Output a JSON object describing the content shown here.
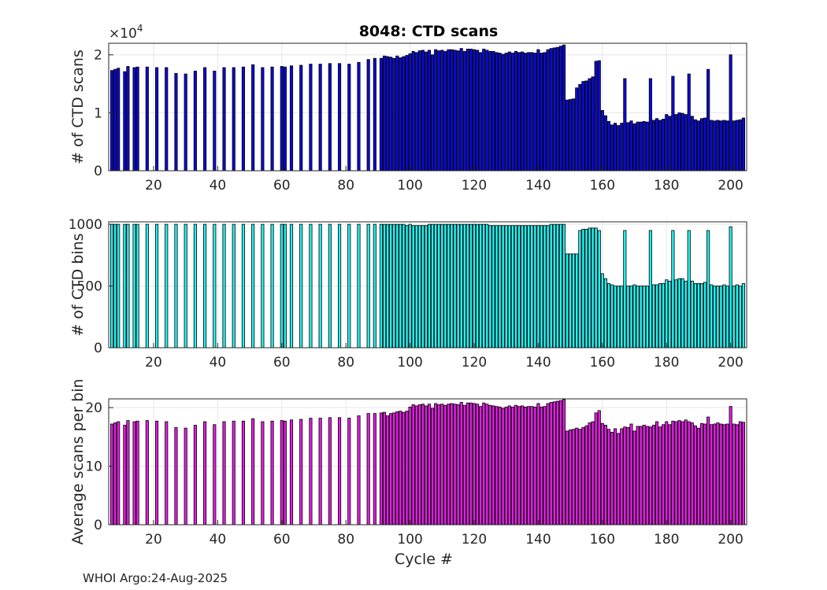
{
  "figure_title": "8048: CTD scans",
  "footer": "WHOI Argo:24-Aug-2025",
  "chart_data": [
    {
      "type": "bar",
      "title": "8048: CTD scans",
      "xlabel": "",
      "ylabel": "# of CTD scans",
      "exponent_label": "×10",
      "exponent_power": "4",
      "xlim": [
        6,
        205
      ],
      "ylim": [
        0,
        22000
      ],
      "xticks": [
        20,
        40,
        60,
        80,
        100,
        120,
        140,
        160,
        180,
        200
      ],
      "yticks": [
        0,
        10000,
        20000
      ],
      "ytick_labels": [
        "0",
        "1",
        "2"
      ],
      "color": "#0b0bd8",
      "edgecolor": "#000000",
      "x": [
        7,
        8,
        9,
        11,
        12,
        14,
        15,
        18,
        21,
        24,
        27,
        30,
        33,
        36,
        39,
        42,
        45,
        48,
        51,
        54,
        57,
        60,
        61,
        63,
        66,
        69,
        72,
        75,
        78,
        81,
        84,
        87,
        89,
        91,
        92,
        93,
        94,
        95,
        96,
        97,
        98,
        99,
        100,
        101,
        102,
        103,
        104,
        105,
        106,
        107,
        108,
        109,
        110,
        111,
        112,
        113,
        114,
        115,
        116,
        117,
        118,
        119,
        120,
        121,
        122,
        123,
        124,
        125,
        126,
        127,
        128,
        129,
        130,
        131,
        132,
        133,
        134,
        135,
        136,
        137,
        138,
        139,
        140,
        141,
        142,
        143,
        144,
        145,
        146,
        147,
        148,
        149,
        150,
        151,
        152,
        153,
        154,
        155,
        156,
        157,
        158,
        159,
        160,
        161,
        162,
        163,
        164,
        165,
        166,
        167,
        168,
        169,
        170,
        171,
        172,
        173,
        174,
        175,
        176,
        177,
        178,
        179,
        180,
        181,
        182,
        183,
        184,
        185,
        186,
        187,
        188,
        189,
        190,
        191,
        192,
        193,
        194,
        195,
        196,
        197,
        198,
        199,
        200,
        201,
        202,
        203,
        204
      ],
      "values": [
        17300,
        17500,
        17700,
        17100,
        18000,
        17800,
        17900,
        17900,
        17800,
        17800,
        16800,
        16700,
        17200,
        17800,
        17200,
        17800,
        17800,
        17900,
        18300,
        17800,
        17900,
        18000,
        17900,
        18100,
        18200,
        18400,
        18400,
        18500,
        18500,
        18400,
        18700,
        19200,
        19400,
        19400,
        19800,
        19700,
        19600,
        19400,
        19800,
        19500,
        19700,
        19900,
        20200,
        20600,
        20400,
        20700,
        20800,
        20500,
        20800,
        20000,
        20900,
        20700,
        20800,
        20600,
        20900,
        20900,
        20800,
        20700,
        21100,
        20600,
        21000,
        21000,
        20900,
        20800,
        20400,
        21000,
        20800,
        20600,
        20600,
        20400,
        20300,
        20100,
        20300,
        20500,
        20300,
        20600,
        20400,
        20500,
        20300,
        20400,
        20400,
        20300,
        20900,
        20300,
        20400,
        20900,
        21100,
        21200,
        21300,
        21500,
        21700,
        12200,
        12300,
        12400,
        14300,
        14900,
        15400,
        15500,
        15900,
        16200,
        18900,
        19000,
        10400,
        9500,
        8500,
        7900,
        8200,
        7800,
        8200,
        15900,
        8300,
        8600,
        8100,
        8400,
        8400,
        8500,
        8400,
        15900,
        8700,
        9000,
        8700,
        8900,
        9700,
        9400,
        16300,
        9700,
        10000,
        9900,
        9700,
        16700,
        9400,
        8800,
        8600,
        9000,
        9100,
        17500,
        8700,
        8600,
        8700,
        8600,
        8700,
        8600,
        20000,
        8600,
        8700,
        8800,
        9100
      ]
    },
    {
      "type": "bar",
      "title": "",
      "xlabel": "",
      "ylabel": "# of CTD bins",
      "xlim": [
        6,
        205
      ],
      "ylim": [
        0,
        1020
      ],
      "xticks": [
        20,
        40,
        60,
        80,
        100,
        120,
        140,
        160,
        180,
        200
      ],
      "yticks": [
        0,
        500,
        1000
      ],
      "ytick_labels": [
        "0",
        "500",
        "1000"
      ],
      "color": "#22f2f2",
      "edgecolor": "#000000",
      "x": [
        7,
        8,
        9,
        11,
        12,
        14,
        15,
        18,
        21,
        24,
        27,
        30,
        33,
        36,
        39,
        42,
        45,
        48,
        51,
        54,
        57,
        60,
        61,
        63,
        66,
        69,
        72,
        75,
        78,
        81,
        84,
        87,
        89,
        91,
        92,
        93,
        94,
        95,
        96,
        97,
        98,
        99,
        100,
        101,
        102,
        103,
        104,
        105,
        106,
        107,
        108,
        109,
        110,
        111,
        112,
        113,
        114,
        115,
        116,
        117,
        118,
        119,
        120,
        121,
        122,
        123,
        124,
        125,
        126,
        127,
        128,
        129,
        130,
        131,
        132,
        133,
        134,
        135,
        136,
        137,
        138,
        139,
        140,
        141,
        142,
        143,
        144,
        145,
        146,
        147,
        148,
        149,
        150,
        151,
        152,
        153,
        154,
        155,
        156,
        157,
        158,
        159,
        160,
        161,
        162,
        163,
        164,
        165,
        166,
        167,
        168,
        169,
        170,
        171,
        172,
        173,
        174,
        175,
        176,
        177,
        178,
        179,
        180,
        181,
        182,
        183,
        184,
        185,
        186,
        187,
        188,
        189,
        190,
        191,
        192,
        193,
        194,
        195,
        196,
        197,
        198,
        199,
        200,
        201,
        202,
        203,
        204
      ],
      "values": [
        1000,
        1000,
        1000,
        1000,
        1000,
        1000,
        1000,
        1000,
        1000,
        1000,
        1000,
        1000,
        1000,
        1000,
        1000,
        1000,
        1000,
        1000,
        1000,
        1000,
        1000,
        1000,
        1000,
        1000,
        1000,
        1000,
        1000,
        1000,
        1000,
        1000,
        1000,
        1000,
        1000,
        1000,
        1000,
        1000,
        1000,
        1000,
        1000,
        1000,
        1000,
        990,
        1000,
        990,
        990,
        990,
        990,
        990,
        1000,
        1000,
        1000,
        1000,
        1000,
        1000,
        1000,
        1000,
        1000,
        1000,
        1000,
        1000,
        1000,
        1000,
        1000,
        1000,
        1000,
        1000,
        1000,
        990,
        990,
        990,
        990,
        990,
        990,
        990,
        990,
        990,
        990,
        990,
        990,
        990,
        990,
        990,
        990,
        990,
        990,
        990,
        1000,
        1000,
        1000,
        1000,
        1000,
        760,
        760,
        760,
        760,
        950,
        960,
        960,
        970,
        970,
        970,
        950,
        600,
        560,
        520,
        510,
        500,
        500,
        500,
        950,
        500,
        500,
        510,
        500,
        500,
        500,
        500,
        950,
        510,
        510,
        520,
        520,
        550,
        540,
        950,
        550,
        560,
        560,
        540,
        950,
        540,
        520,
        520,
        520,
        530,
        950,
        510,
        500,
        500,
        500,
        510,
        500,
        980,
        500,
        510,
        500,
        520
      ]
    },
    {
      "type": "bar",
      "title": "",
      "xlabel": "Cycle #",
      "ylabel": "Average scans per bin",
      "xlim": [
        6,
        205
      ],
      "ylim": [
        0,
        21.5
      ],
      "xticks": [
        20,
        40,
        60,
        80,
        100,
        120,
        140,
        160,
        180,
        200
      ],
      "yticks": [
        0,
        10,
        20
      ],
      "ytick_labels": [
        "0",
        "10",
        "20"
      ],
      "color": "#e21ee2",
      "edgecolor": "#000000",
      "x": [
        7,
        8,
        9,
        11,
        12,
        14,
        15,
        18,
        21,
        24,
        27,
        30,
        33,
        36,
        39,
        42,
        45,
        48,
        51,
        54,
        57,
        60,
        61,
        63,
        66,
        69,
        72,
        75,
        78,
        81,
        84,
        87,
        89,
        91,
        92,
        93,
        94,
        95,
        96,
        97,
        98,
        99,
        100,
        101,
        102,
        103,
        104,
        105,
        106,
        107,
        108,
        109,
        110,
        111,
        112,
        113,
        114,
        115,
        116,
        117,
        118,
        119,
        120,
        121,
        122,
        123,
        124,
        125,
        126,
        127,
        128,
        129,
        130,
        131,
        132,
        133,
        134,
        135,
        136,
        137,
        138,
        139,
        140,
        141,
        142,
        143,
        144,
        145,
        146,
        147,
        148,
        149,
        150,
        151,
        152,
        153,
        154,
        155,
        156,
        157,
        158,
        159,
        160,
        161,
        162,
        163,
        164,
        165,
        166,
        167,
        168,
        169,
        170,
        171,
        172,
        173,
        174,
        175,
        176,
        177,
        178,
        179,
        180,
        181,
        182,
        183,
        184,
        185,
        186,
        187,
        188,
        189,
        190,
        191,
        192,
        193,
        194,
        195,
        196,
        197,
        198,
        199,
        200,
        201,
        202,
        203,
        204
      ],
      "values": [
        17.2,
        17.4,
        17.6,
        17.0,
        17.8,
        17.6,
        17.7,
        17.8,
        17.7,
        17.6,
        16.6,
        16.5,
        17.0,
        17.6,
        17.1,
        17.6,
        17.7,
        17.7,
        18.1,
        17.6,
        17.7,
        17.8,
        17.7,
        17.9,
        18.0,
        18.2,
        18.2,
        18.3,
        18.3,
        18.2,
        18.6,
        19.0,
        19.0,
        19.1,
        19.2,
        18.6,
        19.0,
        19.1,
        19.3,
        19.4,
        19.2,
        19.4,
        20.1,
        20.5,
        20.3,
        20.5,
        20.6,
        20.3,
        20.6,
        19.9,
        20.7,
        20.5,
        20.6,
        20.4,
        20.6,
        20.7,
        20.6,
        20.5,
        20.9,
        20.4,
        20.8,
        20.8,
        20.7,
        20.6,
        20.2,
        20.8,
        20.6,
        20.4,
        20.3,
        20.2,
        20.1,
        19.9,
        20.1,
        20.3,
        20.1,
        20.4,
        20.2,
        20.3,
        20.1,
        20.2,
        20.2,
        20.1,
        20.7,
        20.1,
        20.2,
        20.7,
        20.9,
        21.0,
        21.1,
        21.2,
        21.4,
        16.0,
        16.2,
        16.3,
        16.5,
        16.3,
        16.6,
        16.9,
        17.4,
        17.6,
        19.1,
        19.5,
        17.3,
        17.0,
        16.3,
        15.8,
        16.4,
        15.6,
        16.4,
        16.7,
        16.6,
        17.2,
        16.0,
        16.8,
        16.8,
        17.0,
        16.8,
        16.7,
        17.0,
        17.6,
        16.7,
        17.1,
        17.6,
        17.1,
        17.7,
        17.6,
        17.8,
        17.6,
        17.9,
        17.6,
        17.4,
        16.9,
        16.5,
        17.3,
        17.2,
        18.4,
        17.1,
        17.2,
        17.4,
        17.2,
        17.1,
        17.2,
        20.2,
        17.2,
        17.1,
        17.6,
        17.5
      ]
    }
  ]
}
